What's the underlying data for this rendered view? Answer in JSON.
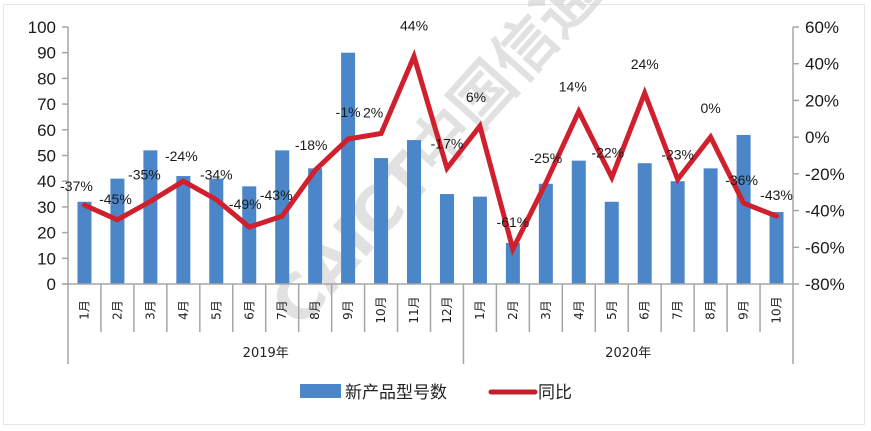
{
  "chart_data": {
    "type": "bar+line",
    "title": "",
    "categories": [
      "1月",
      "2月",
      "3月",
      "4月",
      "5月",
      "6月",
      "7月",
      "8月",
      "9月",
      "10月",
      "11月",
      "12月",
      "1月",
      "2月",
      "3月",
      "4月",
      "5月",
      "6月",
      "7月",
      "8月",
      "9月",
      "10月"
    ],
    "category_groups": [
      {
        "label": "2019年",
        "start": 0,
        "end": 11
      },
      {
        "label": "2020年",
        "start": 12,
        "end": 21
      }
    ],
    "series": [
      {
        "name": "新产品型号数",
        "type": "bar",
        "axis": "left",
        "color": "#4a86c8",
        "values": [
          32,
          41,
          52,
          42,
          41,
          38,
          52,
          45,
          90,
          49,
          56,
          35,
          34,
          16,
          39,
          48,
          32,
          47,
          40,
          45,
          58,
          28
        ]
      },
      {
        "name": "同比",
        "type": "line",
        "axis": "right",
        "color": "#d0202e",
        "values": [
          -37,
          -45,
          -35,
          -24,
          -34,
          -49,
          -43,
          -18,
          -1,
          2,
          44,
          -17,
          6,
          -61,
          -25,
          14,
          -22,
          24,
          -23,
          0,
          -36,
          -43
        ],
        "labels": [
          "-37%",
          "-45%",
          "-35%",
          "-24%",
          "-34%",
          "-49%",
          "-43%",
          "-18%",
          "-1%",
          "2%",
          "44%",
          "-17%",
          "6%",
          "-61%",
          "-25%",
          "14%",
          "-22%",
          "24%",
          "-23%",
          "0%",
          "-36%",
          "-43%"
        ]
      }
    ],
    "left_axis": {
      "min": 0,
      "max": 100,
      "step": 10,
      "ticks": [
        "0",
        "10",
        "20",
        "30",
        "40",
        "50",
        "60",
        "70",
        "80",
        "90",
        "100"
      ]
    },
    "right_axis": {
      "min": -80,
      "max": 60,
      "step": 20,
      "ticks": [
        "-80%",
        "-60%",
        "-40%",
        "-20%",
        "0%",
        "20%",
        "40%",
        "60%"
      ]
    },
    "xlabel": "",
    "ylabel": "",
    "grid": false,
    "legend_position": "bottom",
    "watermark": "CAICT中国信通院"
  },
  "legend": {
    "bar_label": "新产品型号数",
    "line_label": "同比"
  }
}
